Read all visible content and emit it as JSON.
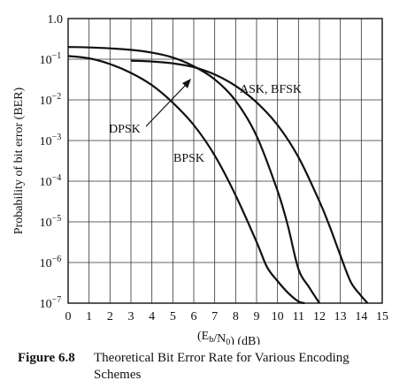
{
  "chart_data": {
    "type": "line",
    "xlabel": "(E_b/N_0) (dB)",
    "ylabel": "Probability of bit error (BER)",
    "xlim": [
      0,
      15
    ],
    "ylim": [
      1e-07,
      1.0
    ],
    "yscale": "log",
    "x_ticks": [
      "0",
      "1",
      "2",
      "3",
      "4",
      "5",
      "6",
      "7",
      "8",
      "9",
      "10",
      "11",
      "12",
      "13",
      "14",
      "15"
    ],
    "y_ticks": [
      {
        "mant": "1.0",
        "exp": ""
      },
      {
        "mant": "10",
        "exp": "−1"
      },
      {
        "mant": "10",
        "exp": "−2"
      },
      {
        "mant": "10",
        "exp": "−3"
      },
      {
        "mant": "10",
        "exp": "−4"
      },
      {
        "mant": "10",
        "exp": "−5"
      },
      {
        "mant": "10",
        "exp": "−6"
      },
      {
        "mant": "10",
        "exp": "−7"
      }
    ],
    "grid": true,
    "series": [
      {
        "name": "ASK, BFSK",
        "color": "#111111",
        "x": [
          3.0,
          4.0,
          5.0,
          6.0,
          7.0,
          8.0,
          9.0,
          10.0,
          11.0,
          12.0,
          12.5,
          13.0,
          13.5,
          14.0,
          14.3
        ],
        "y": [
          0.092,
          0.088,
          0.079,
          0.064,
          0.042,
          0.022,
          0.0087,
          0.0024,
          0.00039,
          3.2e-05,
          7.5e-06,
          1.5e-06,
          3.3e-07,
          1.5e-07,
          1e-07
        ]
      },
      {
        "name": "DPSK",
        "color": "#111111",
        "x": [
          0.0,
          1.0,
          2.0,
          3.0,
          4.0,
          5.0,
          6.0,
          7.0,
          8.0,
          9.0,
          10.0,
          10.5,
          11.0,
          11.5,
          12.0
        ],
        "y": [
          0.2,
          0.195,
          0.185,
          0.17,
          0.145,
          0.11,
          0.067,
          0.032,
          0.0095,
          0.0013,
          5.8e-05,
          7.8e-06,
          6.9e-07,
          2.5e-07,
          1e-07
        ]
      },
      {
        "name": "BPSK",
        "color": "#111111",
        "x": [
          0.0,
          1.0,
          2.0,
          3.0,
          4.0,
          5.0,
          6.0,
          7.0,
          8.0,
          9.0,
          9.5,
          10.0,
          10.5,
          11.0,
          11.3
        ],
        "y": [
          0.12,
          0.105,
          0.076,
          0.046,
          0.023,
          0.0085,
          0.0024,
          0.00043,
          4.5e-05,
          3.2e-06,
          7.7e-07,
          3.5e-07,
          1.8e-07,
          1.1e-07,
          1e-07
        ]
      }
    ],
    "labels": [
      {
        "text": "ASK, BFSK",
        "series": "ASK, BFSK"
      },
      {
        "text": "DPSK",
        "series": "DPSK"
      },
      {
        "text": "BPSK",
        "series": "BPSK"
      }
    ]
  },
  "caption": {
    "figure_number": "Figure 6.8",
    "title": "Theoretical Bit Error Rate for Various Encoding Schemes"
  }
}
